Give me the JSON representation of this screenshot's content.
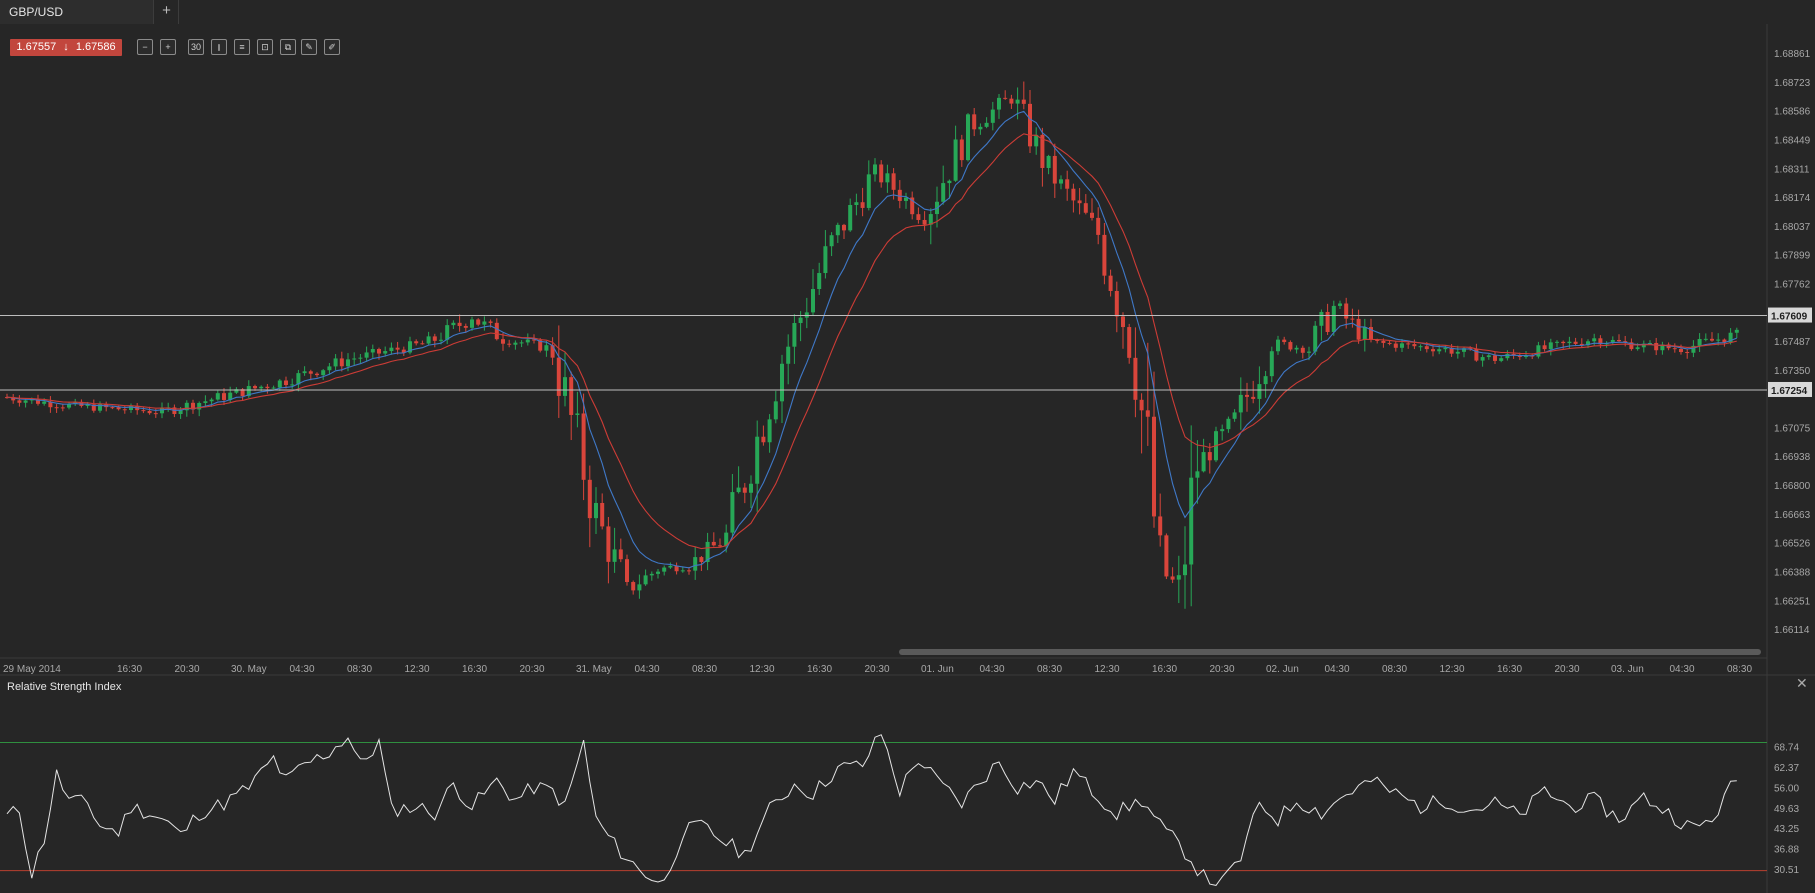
{
  "tab": {
    "title": "GBP/USD",
    "add": "+"
  },
  "quote": {
    "bid": "1.67557",
    "ask": "1.67586",
    "arrow": "↓",
    "color": "#c2463d"
  },
  "toolbar": [
    {
      "name": "zoom-out-icon",
      "glyph": "−"
    },
    {
      "name": "zoom-in-icon",
      "glyph": "+"
    },
    {
      "name": "timeframe-button",
      "glyph": "30"
    },
    {
      "name": "chart-type-icon",
      "glyph": "⫾"
    },
    {
      "name": "indicators-icon",
      "glyph": "≡"
    },
    {
      "name": "settings-icon",
      "glyph": "⊡"
    },
    {
      "name": "templates-icon",
      "glyph": "⧉"
    },
    {
      "name": "edit-icon",
      "glyph": "✎"
    },
    {
      "name": "draw-icon",
      "glyph": "✐"
    }
  ],
  "colors": {
    "up": "#27a857",
    "down": "#d9453b",
    "ema_fast": "#3f78c7",
    "ema_slow": "#cc3c36",
    "background": "#262626",
    "grid_line": "#bdbdbd"
  },
  "price_axis": {
    "ticks": [
      "1.68861",
      "1.68723",
      "1.68586",
      "1.68449",
      "1.68311",
      "1.68174",
      "1.68037",
      "1.67899",
      "1.67762",
      "1.67487",
      "1.67350",
      "1.67075",
      "1.66938",
      "1.66800",
      "1.66663",
      "1.66526",
      "1.66388",
      "1.66251",
      "1.66114"
    ],
    "level_high": "1.67609",
    "level_low": "1.67254"
  },
  "time_axis": {
    "labels": [
      "29 May 2014",
      "16:30",
      "20:30",
      "30. May",
      "04:30",
      "08:30",
      "12:30",
      "16:30",
      "20:30",
      "31. May",
      "04:30",
      "08:30",
      "12:30",
      "16:30",
      "20:30",
      "01. Jun",
      "04:30",
      "08:30",
      "12:30",
      "16:30",
      "20:30",
      "02. Jun",
      "04:30",
      "08:30",
      "12:30",
      "16:30",
      "20:30",
      "03. Jun",
      "04:30",
      "08:30"
    ]
  },
  "rsi": {
    "title": "Relative Strength Index",
    "close": "✕",
    "ticks": [
      "68.74",
      "62.37",
      "56.00",
      "49.63",
      "43.25",
      "36.88",
      "30.51"
    ],
    "upper": 70,
    "lower": 30,
    "color_upper": "#2f8f3f",
    "color_lower": "#b8402f"
  },
  "chart_data": {
    "type": "candlestick",
    "symbol": "GBP/USD",
    "ylim": [
      1.66,
      1.69
    ],
    "waypoints": [
      [
        0,
        1.6722
      ],
      [
        10,
        1.6718
      ],
      [
        25,
        1.6715
      ],
      [
        45,
        1.673
      ],
      [
        55,
        1.674
      ],
      [
        68,
        1.6748
      ],
      [
        75,
        1.676
      ],
      [
        80,
        1.675
      ],
      [
        88,
        1.6745
      ],
      [
        95,
        1.6665
      ],
      [
        100,
        1.663
      ],
      [
        105,
        1.664
      ],
      [
        110,
        1.6642
      ],
      [
        116,
        1.6655
      ],
      [
        125,
        1.674
      ],
      [
        133,
        1.6795
      ],
      [
        140,
        1.683
      ],
      [
        148,
        1.6808
      ],
      [
        155,
        1.685
      ],
      [
        162,
        1.6865
      ],
      [
        168,
        1.683
      ],
      [
        172,
        1.6815
      ],
      [
        176,
        1.68
      ],
      [
        182,
        1.674
      ],
      [
        186,
        1.664
      ],
      [
        189,
        1.663
      ],
      [
        192,
        1.669
      ],
      [
        198,
        1.671
      ],
      [
        204,
        1.6748
      ],
      [
        210,
        1.6745
      ],
      [
        214,
        1.6765
      ],
      [
        220,
        1.6748
      ],
      [
        232,
        1.6745
      ],
      [
        240,
        1.674
      ],
      [
        248,
        1.6745
      ],
      [
        256,
        1.675
      ],
      [
        262,
        1.6747
      ],
      [
        270,
        1.6745
      ],
      [
        279,
        1.6752
      ]
    ],
    "rsi_points": [
      [
        0,
        47
      ],
      [
        2,
        49
      ],
      [
        4,
        29
      ],
      [
        6,
        40
      ],
      [
        8,
        60
      ],
      [
        10,
        52
      ],
      [
        13,
        51
      ],
      [
        15,
        44
      ],
      [
        18,
        42
      ],
      [
        20,
        50
      ],
      [
        23,
        48
      ],
      [
        26,
        45
      ],
      [
        28,
        41
      ],
      [
        31,
        48
      ],
      [
        35,
        51
      ],
      [
        39,
        56
      ],
      [
        43,
        65
      ],
      [
        45,
        58
      ],
      [
        48,
        63
      ],
      [
        52,
        67
      ],
      [
        55,
        72
      ],
      [
        57,
        63
      ],
      [
        60,
        70
      ],
      [
        62,
        49
      ],
      [
        66,
        50
      ],
      [
        69,
        48
      ],
      [
        72,
        57
      ],
      [
        75,
        50
      ],
      [
        79,
        58
      ],
      [
        82,
        52
      ],
      [
        85,
        56
      ],
      [
        88,
        55
      ],
      [
        90,
        50
      ],
      [
        93,
        70
      ],
      [
        95,
        46
      ],
      [
        98,
        38
      ],
      [
        102,
        30
      ],
      [
        106,
        26
      ],
      [
        109,
        42
      ],
      [
        112,
        44
      ],
      [
        115,
        40
      ],
      [
        119,
        35
      ],
      [
        123,
        49
      ],
      [
        127,
        57
      ],
      [
        130,
        54
      ],
      [
        134,
        62
      ],
      [
        138,
        63
      ],
      [
        141,
        73
      ],
      [
        144,
        55
      ],
      [
        147,
        65
      ],
      [
        150,
        58
      ],
      [
        154,
        51
      ],
      [
        157,
        58
      ],
      [
        160,
        64
      ],
      [
        163,
        56
      ],
      [
        166,
        58
      ],
      [
        169,
        52
      ],
      [
        172,
        61
      ],
      [
        175,
        55
      ],
      [
        179,
        48
      ],
      [
        183,
        52
      ],
      [
        186,
        44
      ],
      [
        190,
        36
      ],
      [
        193,
        28
      ],
      [
        196,
        26
      ],
      [
        199,
        34
      ],
      [
        202,
        51
      ],
      [
        205,
        46
      ],
      [
        208,
        52
      ],
      [
        212,
        48
      ],
      [
        216,
        54
      ],
      [
        220,
        58
      ],
      [
        224,
        54
      ],
      [
        228,
        50
      ],
      [
        232,
        52
      ],
      [
        236,
        49
      ],
      [
        240,
        51
      ],
      [
        244,
        47
      ],
      [
        248,
        55
      ],
      [
        252,
        50
      ],
      [
        256,
        52
      ],
      [
        260,
        46
      ],
      [
        264,
        53
      ],
      [
        268,
        48
      ],
      [
        272,
        43
      ],
      [
        275,
        46
      ],
      [
        279,
        59
      ]
    ]
  }
}
